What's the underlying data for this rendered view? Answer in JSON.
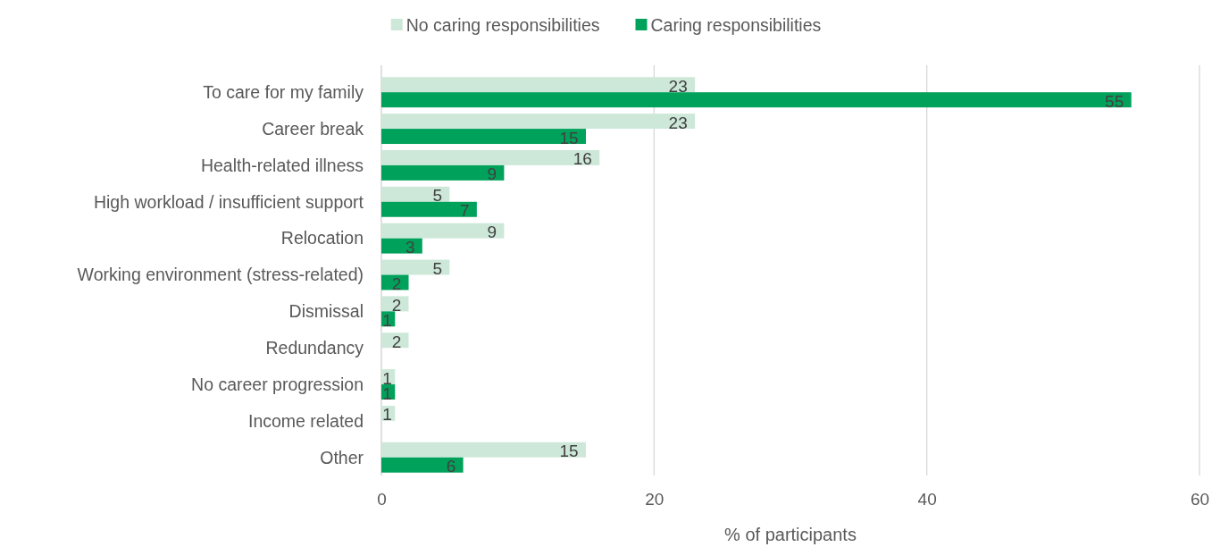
{
  "chart_data": {
    "type": "bar",
    "orientation": "horizontal",
    "xlabel": "% of participants",
    "categories": [
      "To care for my family",
      "Career break",
      "Health-related illness",
      "High workload / insufficient support",
      "Relocation",
      "Working environment (stress-related)",
      "Dismissal",
      "Redundancy",
      "No career progression",
      "Income related",
      "Other"
    ],
    "series": [
      {
        "name": "No caring responsibilities",
        "color": "#cde8d9",
        "values": [
          23,
          23,
          16,
          5,
          9,
          5,
          2,
          2,
          1,
          1,
          15
        ]
      },
      {
        "name": "Caring responsibilities",
        "color": "#00a25b",
        "values": [
          55,
          15,
          9,
          7,
          3,
          2,
          1,
          null,
          1,
          null,
          6
        ]
      }
    ],
    "xlim": [
      0,
      60
    ],
    "xticks": [
      0,
      20,
      40,
      60
    ],
    "grid": "x",
    "legend": "top",
    "data_labels": true
  }
}
